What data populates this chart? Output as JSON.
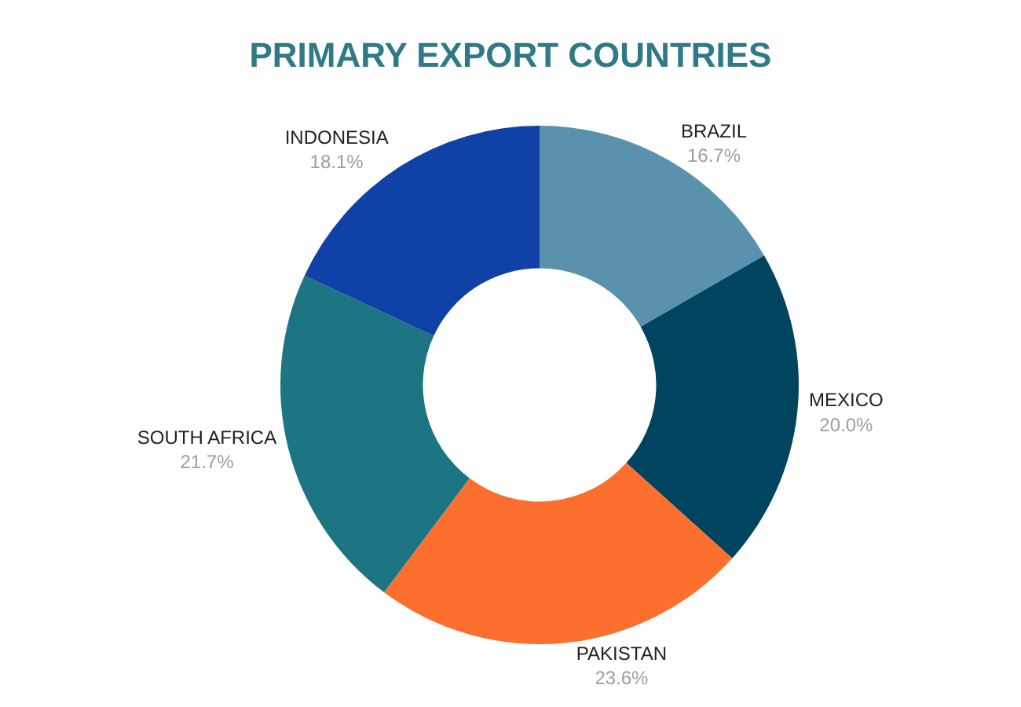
{
  "chart_data": {
    "type": "donut",
    "title": "PRIMARY EXPORT COUNTRIES",
    "categories": [
      "BRAZIL",
      "MEXICO",
      "PAKISTAN",
      "SOUTH AFRICA",
      "INDONESIA"
    ],
    "values": [
      16.7,
      20.0,
      23.6,
      21.7,
      18.1
    ],
    "value_labels": [
      "16.7%",
      "20.0%",
      "23.6%",
      "21.7%",
      "18.1%"
    ],
    "colors": [
      "#5a92ae",
      "#00445f",
      "#fd6f2f",
      "#1d7584",
      "#1041a7"
    ],
    "legend": false
  }
}
